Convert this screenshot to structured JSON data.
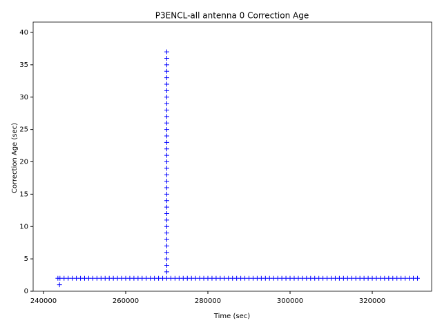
{
  "chart_data": {
    "type": "scatter",
    "title": "P3ENCL-all antenna 0 Correction Age",
    "x_label": "Time (sec)",
    "y_label": "Correction Age (sec)",
    "color": "#0000ff",
    "marker": "+",
    "x": [
      243500,
      244000,
      245000,
      246000,
      247000,
      248000,
      249000,
      250000,
      251000,
      252000,
      253000,
      254000,
      255000,
      256000,
      257000,
      258000,
      259000,
      260000,
      261000,
      262000,
      263000,
      264000,
      265000,
      266000,
      267000,
      268000,
      269000,
      270000,
      271000,
      272000,
      273000,
      274000,
      275000,
      276000,
      277000,
      278000,
      279000,
      280000,
      281000,
      282000,
      283000,
      284000,
      285000,
      286000,
      287000,
      288000,
      289000,
      290000,
      291000,
      292000,
      293000,
      294000,
      295000,
      296000,
      297000,
      298000,
      299000,
      300000,
      301000,
      302000,
      303000,
      304000,
      305000,
      306000,
      307000,
      308000,
      309000,
      310000,
      311000,
      312000,
      313000,
      314000,
      315000,
      316000,
      317000,
      318000,
      319000,
      320000,
      321000,
      322000,
      323000,
      324000,
      325000,
      326000,
      327000,
      328000,
      329000,
      330000,
      331000,
      243900,
      270000,
      270000,
      270000,
      270000,
      270000,
      270000,
      270000,
      270000,
      270000,
      270000,
      270000,
      270000,
      270000,
      270000,
      270000,
      270000,
      270000,
      270000,
      270000,
      270000,
      270000,
      270000,
      270000,
      270000,
      270000,
      270000,
      270000,
      270000,
      270000,
      270000,
      270000,
      270000,
      270000,
      270000,
      270000
    ],
    "values": [
      2,
      2,
      2,
      2,
      2,
      2,
      2,
      2,
      2,
      2,
      2,
      2,
      2,
      2,
      2,
      2,
      2,
      2,
      2,
      2,
      2,
      2,
      2,
      2,
      2,
      2,
      2,
      2,
      2,
      2,
      2,
      2,
      2,
      2,
      2,
      2,
      2,
      2,
      2,
      2,
      2,
      2,
      2,
      2,
      2,
      2,
      2,
      2,
      2,
      2,
      2,
      2,
      2,
      2,
      2,
      2,
      2,
      2,
      2,
      2,
      2,
      2,
      2,
      2,
      2,
      2,
      2,
      2,
      2,
      2,
      2,
      2,
      2,
      2,
      2,
      2,
      2,
      2,
      2,
      2,
      2,
      2,
      2,
      2,
      2,
      2,
      2,
      2,
      2,
      1,
      3,
      4,
      5,
      6,
      7,
      8,
      9,
      10,
      11,
      12,
      13,
      14,
      15,
      16,
      17,
      18,
      19,
      20,
      21,
      22,
      23,
      24,
      25,
      26,
      27,
      28,
      29,
      30,
      31,
      32,
      33,
      34,
      35,
      36,
      37
    ],
    "xlim": [
      237480,
      334450
    ],
    "ylim": [
      0,
      41.6
    ],
    "xticks": [
      240000,
      260000,
      280000,
      300000,
      320000
    ],
    "yticks": [
      0,
      5,
      10,
      15,
      20,
      25,
      30,
      35,
      40
    ]
  }
}
